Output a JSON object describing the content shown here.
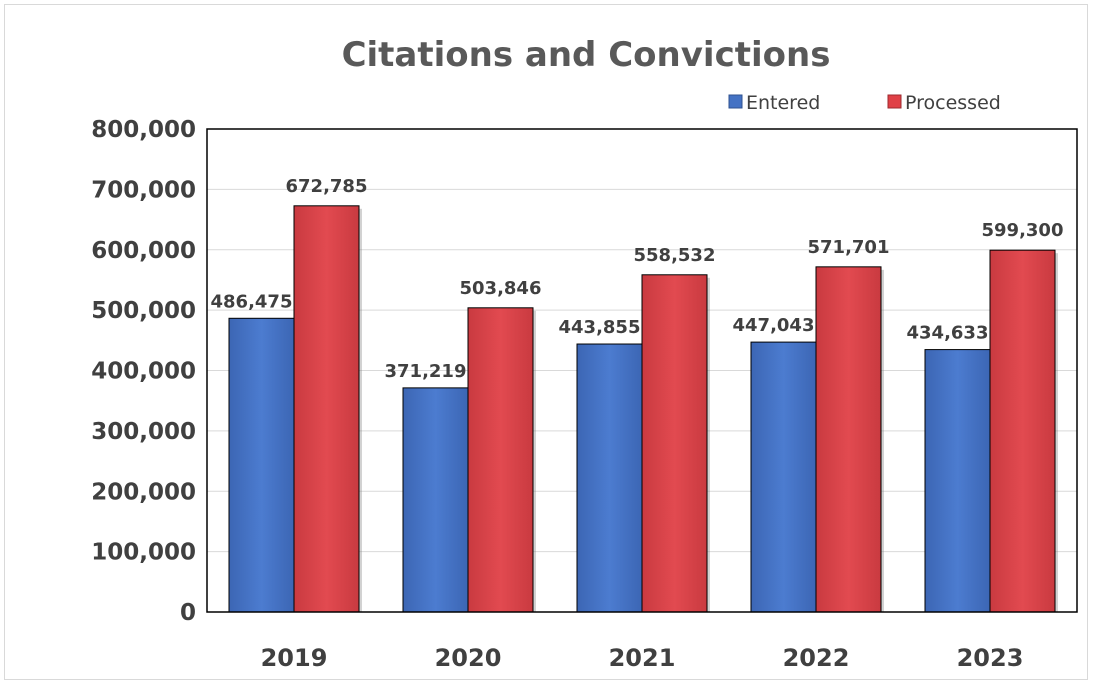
{
  "chart_data": {
    "type": "bar",
    "title": "Citations and Convictions",
    "xlabel": "",
    "ylabel": "",
    "categories": [
      "2019",
      "2020",
      "2021",
      "2022",
      "2023"
    ],
    "series": [
      {
        "name": "Entered",
        "color": "#4472c4",
        "values": [
          486475,
          371219,
          443855,
          447043,
          434633
        ],
        "labels": [
          "486,475",
          "371,219",
          "443,855",
          "447,043",
          "434,633"
        ]
      },
      {
        "name": "Processed",
        "color": "#e04046",
        "values": [
          672785,
          503846,
          558532,
          571701,
          599300
        ],
        "labels": [
          "672,785",
          "503,846",
          "558,532",
          "571,701",
          "599,300"
        ]
      }
    ],
    "ylim": [
      0,
      800000
    ],
    "yticks": [
      0,
      100000,
      200000,
      300000,
      400000,
      500000,
      600000,
      700000,
      800000
    ],
    "ytick_labels": [
      "0",
      "100,000",
      "200,000",
      "300,000",
      "400,000",
      "500,000",
      "600,000",
      "700,000",
      "800,000"
    ],
    "grid": true,
    "legend_position": "top-right"
  }
}
